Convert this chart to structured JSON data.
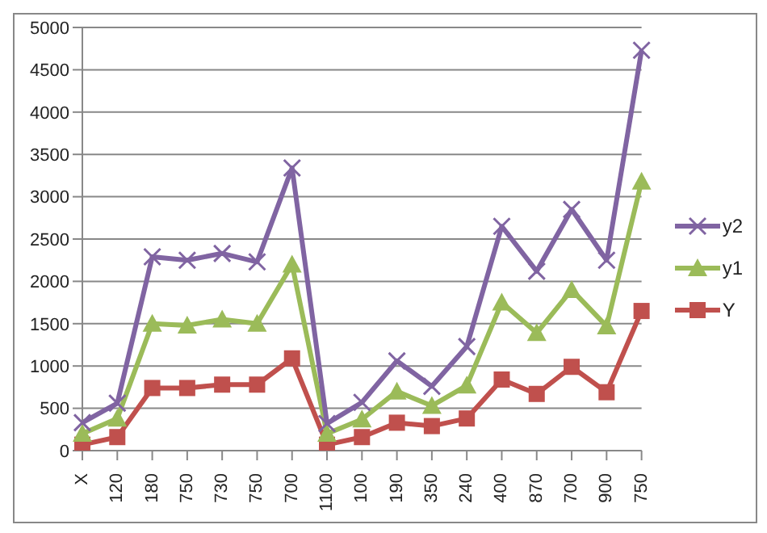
{
  "chart_data": {
    "type": "line",
    "categories": [
      "X",
      "120",
      "180",
      "750",
      "730",
      "750",
      "700",
      "1100",
      "100",
      "190",
      "350",
      "240",
      "400",
      "870",
      "700",
      "900",
      "750"
    ],
    "series": [
      {
        "name": "y2",
        "color": "#8064a2",
        "marker": "cross",
        "values": [
          330,
          560,
          2290,
          2250,
          2330,
          2230,
          3340,
          320,
          570,
          1060,
          760,
          1230,
          2650,
          2120,
          2850,
          2250,
          4730
        ]
      },
      {
        "name": "y1",
        "color": "#9bbb59",
        "marker": "triangle",
        "values": [
          200,
          380,
          1500,
          1480,
          1550,
          1500,
          2200,
          200,
          370,
          700,
          530,
          770,
          1750,
          1390,
          1900,
          1470,
          3180
        ]
      },
      {
        "name": "Y",
        "color": "#c0504d",
        "marker": "square",
        "values": [
          70,
          160,
          740,
          740,
          780,
          780,
          1090,
          70,
          160,
          330,
          290,
          380,
          840,
          670,
          990,
          690,
          1650
        ]
      }
    ],
    "ylim": [
      0,
      5000
    ],
    "yticks": [
      0,
      500,
      1000,
      1500,
      2000,
      2500,
      3000,
      3500,
      4000,
      4500,
      5000
    ],
    "grid": "y",
    "legend": "right"
  }
}
